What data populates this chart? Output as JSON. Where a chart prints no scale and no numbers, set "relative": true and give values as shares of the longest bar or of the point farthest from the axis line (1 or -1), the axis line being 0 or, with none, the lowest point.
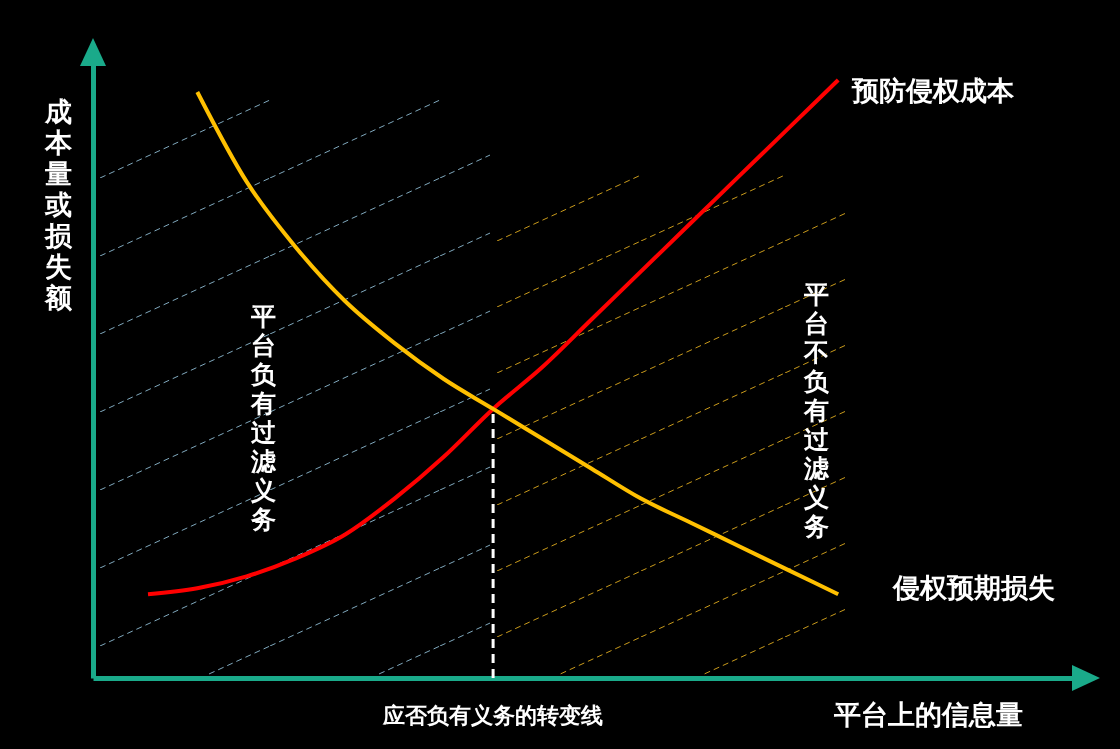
{
  "chart_data": {
    "type": "line",
    "relative": true,
    "xlabel": "平台上的信息量",
    "ylabel": "成本量或损失额",
    "categories": [
      null,
      null,
      null,
      null,
      null,
      null,
      null,
      null,
      null,
      null,
      null,
      null,
      null,
      null,
      null
    ],
    "series": [
      {
        "name": "预防侵权成本",
        "color": "#ff0000",
        "values": [
          0.14,
          0.15,
          0.17,
          0.2,
          0.24,
          0.3,
          0.37,
          0.45,
          0.52,
          0.6,
          0.68,
          0.76,
          0.84,
          0.92,
          1
        ]
      },
      {
        "name": "侵权预期损失",
        "color": "#ffc000",
        "values": [
          null,
          0.98,
          0.83,
          0.72,
          0.63,
          0.56,
          0.5,
          0.45,
          0.4,
          0.35,
          0.3,
          0.26,
          0.22,
          0.18,
          0.14
        ]
      }
    ],
    "annotations": [
      "平台负有过滤义务",
      "平台不负有过滤义务",
      "应否负有义务的转变线"
    ]
  }
}
